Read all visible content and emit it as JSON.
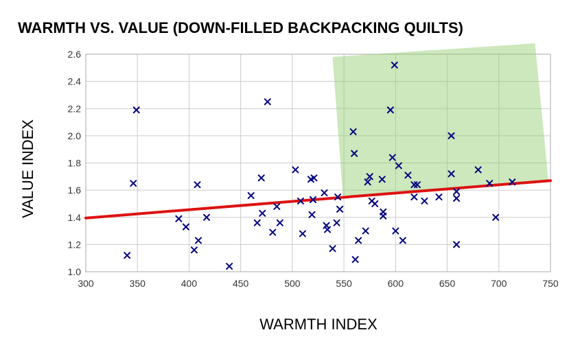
{
  "chart_data": {
    "type": "scatter",
    "title": "WARMTH VS. VALUE (DOWN-FILLED BACKPACKING QUILTS)",
    "xlabel": "WARMTH INDEX",
    "ylabel": "VALUE INDEX",
    "xlim": [
      300,
      750
    ],
    "ylim": [
      1.0,
      2.6
    ],
    "xticks": [
      300,
      350,
      400,
      450,
      500,
      550,
      600,
      650,
      700,
      750
    ],
    "yticks": [
      "1.0",
      "1.2",
      "1.4",
      "1.6",
      "1.8",
      "2.0",
      "2.2",
      "2.4",
      "2.6"
    ],
    "grid": true,
    "legend": "none",
    "marker": "x",
    "colors": {
      "points": "#000080",
      "trendline": "#dd1111",
      "highlight": "#8fcc6a"
    },
    "trendline": {
      "x": [
        300,
        750
      ],
      "y": [
        1.395,
        1.67
      ]
    },
    "highlight_region": {
      "polygon": [
        [
          539,
          2.58
        ],
        [
          735,
          2.68
        ],
        [
          748,
          1.67
        ],
        [
          549,
          1.55
        ]
      ]
    },
    "points": [
      [
        340,
        1.12
      ],
      [
        346,
        1.65
      ],
      [
        349,
        2.19
      ],
      [
        390,
        1.39
      ],
      [
        397,
        1.33
      ],
      [
        405,
        1.16
      ],
      [
        408,
        1.64
      ],
      [
        409,
        1.23
      ],
      [
        417,
        1.4
      ],
      [
        439,
        1.04
      ],
      [
        460,
        1.56
      ],
      [
        466,
        1.36
      ],
      [
        470,
        1.69
      ],
      [
        471,
        1.43
      ],
      [
        476,
        2.25
      ],
      [
        481,
        1.29
      ],
      [
        485,
        1.48
      ],
      [
        488,
        1.36
      ],
      [
        503,
        1.75
      ],
      [
        508,
        1.52
      ],
      [
        510,
        1.28
      ],
      [
        518,
        1.68
      ],
      [
        519,
        1.42
      ],
      [
        520,
        1.53
      ],
      [
        521,
        1.69
      ],
      [
        531,
        1.58
      ],
      [
        533,
        1.34
      ],
      [
        534,
        1.31
      ],
      [
        539,
        1.17
      ],
      [
        543,
        1.36
      ],
      [
        544,
        1.55
      ],
      [
        546,
        1.46
      ],
      [
        559,
        2.03
      ],
      [
        560,
        1.87
      ],
      [
        561,
        1.09
      ],
      [
        564,
        1.23
      ],
      [
        571,
        1.3
      ],
      [
        573,
        1.66
      ],
      [
        575,
        1.7
      ],
      [
        577,
        1.52
      ],
      [
        580,
        1.5
      ],
      [
        587,
        1.68
      ],
      [
        588,
        1.41
      ],
      [
        588,
        1.44
      ],
      [
        595,
        2.19
      ],
      [
        597,
        1.84
      ],
      [
        599,
        2.52
      ],
      [
        600,
        1.3
      ],
      [
        603,
        1.78
      ],
      [
        607,
        1.23
      ],
      [
        612,
        1.71
      ],
      [
        618,
        1.55
      ],
      [
        618,
        1.64
      ],
      [
        621,
        1.64
      ],
      [
        628,
        1.52
      ],
      [
        642,
        1.55
      ],
      [
        654,
        2.0
      ],
      [
        654,
        1.72
      ],
      [
        659,
        1.59
      ],
      [
        659,
        1.54
      ],
      [
        659,
        1.2
      ],
      [
        680,
        1.75
      ],
      [
        691,
        1.65
      ],
      [
        697,
        1.4
      ],
      [
        713,
        1.66
      ]
    ]
  }
}
